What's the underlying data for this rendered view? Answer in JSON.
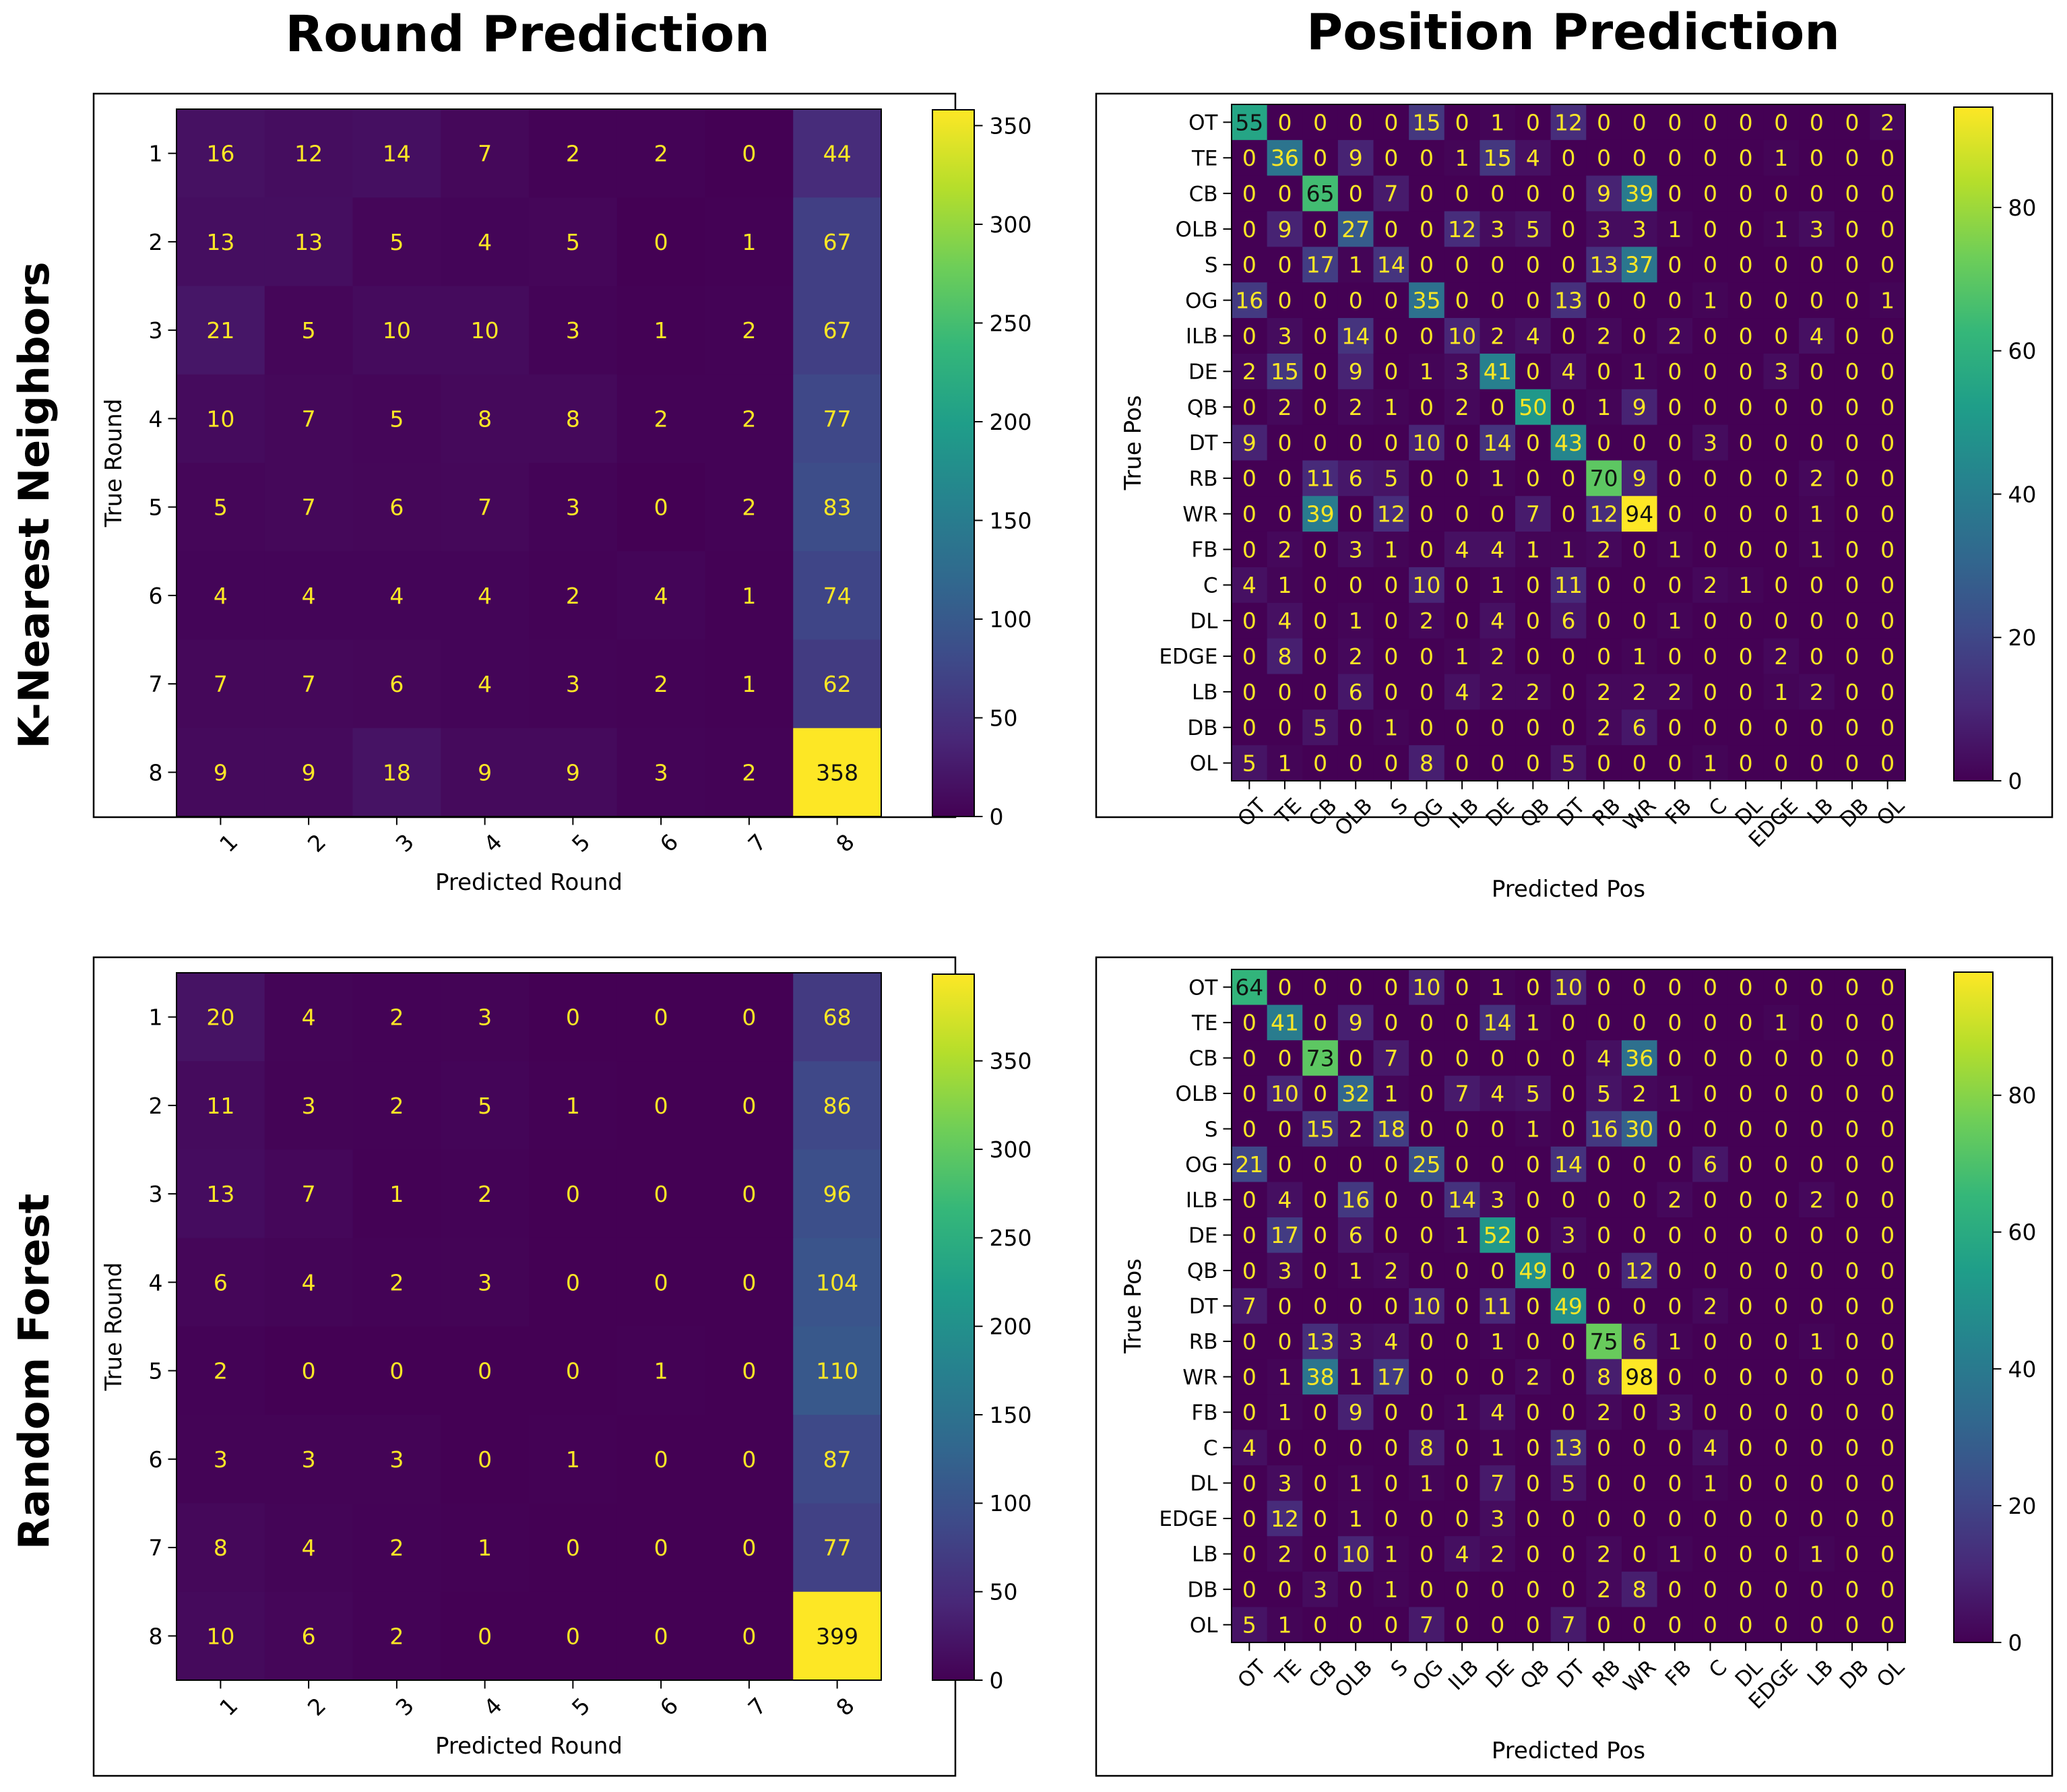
{
  "column_titles": [
    "Round Prediction",
    "Position Prediction"
  ],
  "row_titles": [
    "K-Nearest Neighbors",
    "Random Forest"
  ],
  "colormap": {
    "name": "viridis",
    "stops": [
      "#440154",
      "#482878",
      "#3e4a89",
      "#31688e",
      "#26828e",
      "#1f9e89",
      "#35b779",
      "#6ece58",
      "#b5de2b",
      "#fde725"
    ],
    "text_on_dark": "#fde725",
    "text_on_light": "#111111"
  },
  "chart_data": [
    {
      "type": "heatmap",
      "panel": "knn-round",
      "xlabel": "Predicted Round",
      "ylabel": "True Round",
      "categories": [
        "1",
        "2",
        "3",
        "4",
        "5",
        "6",
        "7",
        "8"
      ],
      "color_range": [
        0,
        358
      ],
      "colorbar_ticks": [
        0,
        50,
        100,
        150,
        200,
        250,
        300,
        350
      ],
      "matrix": [
        [
          16,
          12,
          14,
          7,
          2,
          2,
          0,
          44
        ],
        [
          13,
          13,
          5,
          4,
          5,
          0,
          1,
          67
        ],
        [
          21,
          5,
          10,
          10,
          3,
          1,
          2,
          67
        ],
        [
          10,
          7,
          5,
          8,
          8,
          2,
          2,
          77
        ],
        [
          5,
          7,
          6,
          7,
          3,
          0,
          2,
          83
        ],
        [
          4,
          4,
          4,
          4,
          2,
          4,
          1,
          74
        ],
        [
          7,
          7,
          6,
          4,
          3,
          2,
          1,
          62
        ],
        [
          9,
          9,
          18,
          9,
          9,
          3,
          2,
          358
        ]
      ]
    },
    {
      "type": "heatmap",
      "panel": "knn-position",
      "xlabel": "Predicted Pos",
      "ylabel": "True Pos",
      "categories": [
        "OT",
        "TE",
        "CB",
        "OLB",
        "S",
        "OG",
        "ILB",
        "DE",
        "QB",
        "DT",
        "RB",
        "WR",
        "FB",
        "C",
        "DL",
        "EDGE",
        "LB",
        "DB",
        "OL"
      ],
      "color_range": [
        0,
        94
      ],
      "colorbar_ticks": [
        0,
        20,
        40,
        60,
        80
      ],
      "matrix": [
        [
          55,
          0,
          0,
          0,
          0,
          15,
          0,
          1,
          0,
          12,
          0,
          0,
          0,
          0,
          0,
          0,
          0,
          0,
          2
        ],
        [
          0,
          36,
          0,
          9,
          0,
          0,
          1,
          15,
          4,
          0,
          0,
          0,
          0,
          0,
          0,
          1,
          0,
          0,
          0
        ],
        [
          0,
          0,
          65,
          0,
          7,
          0,
          0,
          0,
          0,
          0,
          9,
          39,
          0,
          0,
          0,
          0,
          0,
          0,
          0
        ],
        [
          0,
          9,
          0,
          27,
          0,
          0,
          12,
          3,
          5,
          0,
          3,
          3,
          1,
          0,
          0,
          1,
          3,
          0,
          0
        ],
        [
          0,
          0,
          17,
          1,
          14,
          0,
          0,
          0,
          0,
          0,
          13,
          37,
          0,
          0,
          0,
          0,
          0,
          0,
          0
        ],
        [
          16,
          0,
          0,
          0,
          0,
          35,
          0,
          0,
          0,
          13,
          0,
          0,
          0,
          1,
          0,
          0,
          0,
          0,
          1
        ],
        [
          0,
          3,
          0,
          14,
          0,
          0,
          10,
          2,
          4,
          0,
          2,
          0,
          2,
          0,
          0,
          0,
          4,
          0,
          0
        ],
        [
          2,
          15,
          0,
          9,
          0,
          1,
          3,
          41,
          0,
          4,
          0,
          1,
          0,
          0,
          0,
          3,
          0,
          0,
          0
        ],
        [
          0,
          2,
          0,
          2,
          1,
          0,
          2,
          0,
          50,
          0,
          1,
          9,
          0,
          0,
          0,
          0,
          0,
          0,
          0
        ],
        [
          9,
          0,
          0,
          0,
          0,
          10,
          0,
          14,
          0,
          43,
          0,
          0,
          0,
          3,
          0,
          0,
          0,
          0,
          0
        ],
        [
          0,
          0,
          11,
          6,
          5,
          0,
          0,
          1,
          0,
          0,
          70,
          9,
          0,
          0,
          0,
          0,
          2,
          0,
          0
        ],
        [
          0,
          0,
          39,
          0,
          12,
          0,
          0,
          0,
          7,
          0,
          12,
          94,
          0,
          0,
          0,
          0,
          1,
          0,
          0
        ],
        [
          0,
          2,
          0,
          3,
          1,
          0,
          4,
          4,
          1,
          1,
          2,
          0,
          1,
          0,
          0,
          0,
          1,
          0,
          0
        ],
        [
          4,
          1,
          0,
          0,
          0,
          10,
          0,
          1,
          0,
          11,
          0,
          0,
          0,
          2,
          1,
          0,
          0,
          0,
          0
        ],
        [
          0,
          4,
          0,
          1,
          0,
          2,
          0,
          4,
          0,
          6,
          0,
          0,
          1,
          0,
          0,
          0,
          0,
          0,
          0
        ],
        [
          0,
          8,
          0,
          2,
          0,
          0,
          1,
          2,
          0,
          0,
          0,
          1,
          0,
          0,
          0,
          2,
          0,
          0,
          0
        ],
        [
          0,
          0,
          0,
          6,
          0,
          0,
          4,
          2,
          2,
          0,
          2,
          2,
          2,
          0,
          0,
          1,
          2,
          0,
          0
        ],
        [
          0,
          0,
          5,
          0,
          1,
          0,
          0,
          0,
          0,
          0,
          2,
          6,
          0,
          0,
          0,
          0,
          0,
          0,
          0
        ],
        [
          5,
          1,
          0,
          0,
          0,
          8,
          0,
          0,
          0,
          5,
          0,
          0,
          0,
          1,
          0,
          0,
          0,
          0,
          0
        ]
      ]
    },
    {
      "type": "heatmap",
      "panel": "rf-round",
      "xlabel": "Predicted Round",
      "ylabel": "True Round",
      "categories": [
        "1",
        "2",
        "3",
        "4",
        "5",
        "6",
        "7",
        "8"
      ],
      "color_range": [
        0,
        399
      ],
      "colorbar_ticks": [
        0,
        50,
        100,
        150,
        200,
        250,
        300,
        350
      ],
      "matrix": [
        [
          20,
          4,
          2,
          3,
          0,
          0,
          0,
          68
        ],
        [
          11,
          3,
          2,
          5,
          1,
          0,
          0,
          86
        ],
        [
          13,
          7,
          1,
          2,
          0,
          0,
          0,
          96
        ],
        [
          6,
          4,
          2,
          3,
          0,
          0,
          0,
          104
        ],
        [
          2,
          0,
          0,
          0,
          0,
          1,
          0,
          110
        ],
        [
          3,
          3,
          3,
          0,
          1,
          0,
          0,
          87
        ],
        [
          8,
          4,
          2,
          1,
          0,
          0,
          0,
          77
        ],
        [
          10,
          6,
          2,
          0,
          0,
          0,
          0,
          399
        ]
      ]
    },
    {
      "type": "heatmap",
      "panel": "rf-position",
      "xlabel": "Predicted Pos",
      "ylabel": "True Pos",
      "categories": [
        "OT",
        "TE",
        "CB",
        "OLB",
        "S",
        "OG",
        "ILB",
        "DE",
        "QB",
        "DT",
        "RB",
        "WR",
        "FB",
        "C",
        "DL",
        "EDGE",
        "LB",
        "DB",
        "OL"
      ],
      "color_range": [
        0,
        98
      ],
      "colorbar_ticks": [
        0,
        20,
        40,
        60,
        80
      ],
      "matrix": [
        [
          64,
          0,
          0,
          0,
          0,
          10,
          0,
          1,
          0,
          10,
          0,
          0,
          0,
          0,
          0,
          0,
          0,
          0,
          0
        ],
        [
          0,
          41,
          0,
          9,
          0,
          0,
          0,
          14,
          1,
          0,
          0,
          0,
          0,
          0,
          0,
          1,
          0,
          0,
          0
        ],
        [
          0,
          0,
          73,
          0,
          7,
          0,
          0,
          0,
          0,
          0,
          4,
          36,
          0,
          0,
          0,
          0,
          0,
          0,
          0
        ],
        [
          0,
          10,
          0,
          32,
          1,
          0,
          7,
          4,
          5,
          0,
          5,
          2,
          1,
          0,
          0,
          0,
          0,
          0,
          0
        ],
        [
          0,
          0,
          15,
          2,
          18,
          0,
          0,
          0,
          1,
          0,
          16,
          30,
          0,
          0,
          0,
          0,
          0,
          0,
          0
        ],
        [
          21,
          0,
          0,
          0,
          0,
          25,
          0,
          0,
          0,
          14,
          0,
          0,
          0,
          6,
          0,
          0,
          0,
          0,
          0
        ],
        [
          0,
          4,
          0,
          16,
          0,
          0,
          14,
          3,
          0,
          0,
          0,
          0,
          2,
          0,
          0,
          0,
          2,
          0,
          0
        ],
        [
          0,
          17,
          0,
          6,
          0,
          0,
          1,
          52,
          0,
          3,
          0,
          0,
          0,
          0,
          0,
          0,
          0,
          0,
          0
        ],
        [
          0,
          3,
          0,
          1,
          2,
          0,
          0,
          0,
          49,
          0,
          0,
          12,
          0,
          0,
          0,
          0,
          0,
          0,
          0
        ],
        [
          7,
          0,
          0,
          0,
          0,
          10,
          0,
          11,
          0,
          49,
          0,
          0,
          0,
          2,
          0,
          0,
          0,
          0,
          0
        ],
        [
          0,
          0,
          13,
          3,
          4,
          0,
          0,
          1,
          0,
          0,
          75,
          6,
          1,
          0,
          0,
          0,
          1,
          0,
          0
        ],
        [
          0,
          1,
          38,
          1,
          17,
          0,
          0,
          0,
          2,
          0,
          8,
          98,
          0,
          0,
          0,
          0,
          0,
          0,
          0
        ],
        [
          0,
          1,
          0,
          9,
          0,
          0,
          1,
          4,
          0,
          0,
          2,
          0,
          3,
          0,
          0,
          0,
          0,
          0,
          0
        ],
        [
          4,
          0,
          0,
          0,
          0,
          8,
          0,
          1,
          0,
          13,
          0,
          0,
          0,
          4,
          0,
          0,
          0,
          0,
          0
        ],
        [
          0,
          3,
          0,
          1,
          0,
          1,
          0,
          7,
          0,
          5,
          0,
          0,
          0,
          1,
          0,
          0,
          0,
          0,
          0
        ],
        [
          0,
          12,
          0,
          1,
          0,
          0,
          0,
          3,
          0,
          0,
          0,
          0,
          0,
          0,
          0,
          0,
          0,
          0,
          0
        ],
        [
          0,
          2,
          0,
          10,
          1,
          0,
          4,
          2,
          0,
          0,
          2,
          0,
          1,
          0,
          0,
          0,
          1,
          0,
          0
        ],
        [
          0,
          0,
          3,
          0,
          1,
          0,
          0,
          0,
          0,
          0,
          2,
          8,
          0,
          0,
          0,
          0,
          0,
          0,
          0
        ],
        [
          5,
          1,
          0,
          0,
          0,
          7,
          0,
          0,
          0,
          7,
          0,
          0,
          0,
          0,
          0,
          0,
          0,
          0,
          0
        ]
      ]
    }
  ]
}
